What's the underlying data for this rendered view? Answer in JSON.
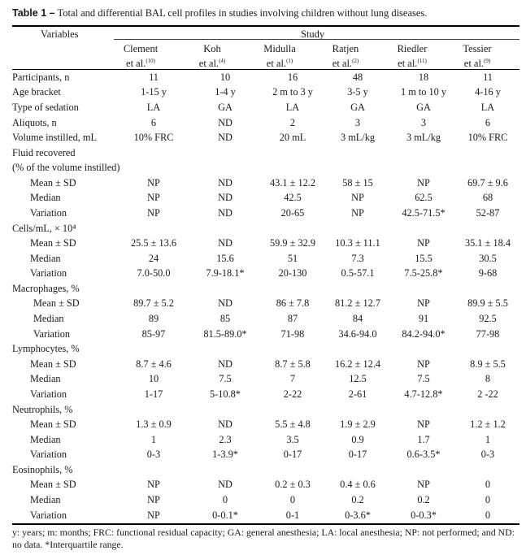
{
  "caption": {
    "label": "Table 1 –",
    "text": "Total and differential BAL cell profiles in studies involving children without lung diseases."
  },
  "header": {
    "variables_label": "Variables",
    "study_label": "Study",
    "columns": [
      {
        "name": "Clement",
        "cite": "et al.",
        "ref": "(10)"
      },
      {
        "name": "Koh",
        "cite": "et al.",
        "ref": "(4)"
      },
      {
        "name": "Midulla",
        "cite": "et al.",
        "ref": "(1)"
      },
      {
        "name": "Ratjen",
        "cite": "et al.",
        "ref": "(2)"
      },
      {
        "name": "Riedler",
        "cite": "et al.",
        "ref": "(11)"
      },
      {
        "name": "Tessier",
        "cite": "et al.",
        "ref": "(9)"
      }
    ]
  },
  "rows": [
    {
      "label": "Participants, n",
      "indent": 0,
      "values": [
        "11",
        "10",
        "16",
        "48",
        "18",
        "11"
      ]
    },
    {
      "label": "Age bracket",
      "indent": 0,
      "values": [
        "1-15 y",
        "1-4 y",
        "2 m to 3 y",
        "3-5 y",
        "1 m to 10 y",
        "4-16 y"
      ]
    },
    {
      "label": "Type of sedation",
      "indent": 0,
      "values": [
        "LA",
        "GA",
        "LA",
        "GA",
        "GA",
        "LA"
      ]
    },
    {
      "label": "Aliquots, n",
      "indent": 0,
      "values": [
        "6",
        "ND",
        "2",
        "3",
        "3",
        "6"
      ]
    },
    {
      "label": "Volume instilled, mL",
      "indent": 0,
      "values": [
        "10% FRC",
        "ND",
        "20 mL",
        "3 mL/kg",
        "3 mL/kg",
        "10% FRC"
      ]
    },
    {
      "label": "Fluid recovered",
      "indent": 0,
      "values": [
        "",
        "",
        "",
        "",
        "",
        ""
      ]
    },
    {
      "label": "(% of the volume instilled)",
      "indent": 0,
      "values": [
        "",
        "",
        "",
        "",
        "",
        ""
      ]
    },
    {
      "label": "Mean ± SD",
      "indent": 1,
      "values": [
        "NP",
        "ND",
        "43.1 ± 12.2",
        "58 ± 15",
        "NP",
        "69.7 ± 9.6"
      ]
    },
    {
      "label": "Median",
      "indent": 1,
      "values": [
        "NP",
        "ND",
        "42.5",
        "NP",
        "62.5",
        "68"
      ]
    },
    {
      "label": "Variation",
      "indent": 1,
      "values": [
        "NP",
        "ND",
        "20-65",
        "NP",
        "42.5-71.5*",
        "52-87"
      ]
    },
    {
      "label": "Cells/mL, × 10⁴",
      "indent": 0,
      "values": [
        "",
        "",
        "",
        "",
        "",
        ""
      ]
    },
    {
      "label": "Mean ± SD",
      "indent": 1,
      "values": [
        "25.5 ± 13.6",
        "ND",
        "59.9 ± 32.9",
        "10.3 ± 11.1",
        "NP",
        "35.1 ± 18.4"
      ]
    },
    {
      "label": "Median",
      "indent": 1,
      "values": [
        "24",
        "15.6",
        "51",
        "7.3",
        "15.5",
        "30.5"
      ]
    },
    {
      "label": "Variation",
      "indent": 1,
      "values": [
        "7.0-50.0",
        "7.9-18.1*",
        "20-130",
        "0.5-57.1",
        "7.5-25.8*",
        "9-68"
      ]
    },
    {
      "label": "Macrophages, %",
      "indent": 0,
      "values": [
        "",
        "",
        "",
        "",
        "",
        ""
      ]
    },
    {
      "label": "Mean ± SD",
      "indent": 2,
      "values": [
        "89.7 ± 5.2",
        "ND",
        "86 ± 7.8",
        "81.2 ± 12.7",
        "NP",
        "89.9 ± 5.5"
      ]
    },
    {
      "label": "Median",
      "indent": 2,
      "values": [
        "89",
        "85",
        "87",
        "84",
        "91",
        "92.5"
      ]
    },
    {
      "label": "Variation",
      "indent": 2,
      "values": [
        "85-97",
        "81.5-89.0*",
        "71-98",
        "34.6-94.0",
        "84.2-94.0*",
        "77-98"
      ]
    },
    {
      "label": "Lymphocytes, %",
      "indent": 0,
      "values": [
        "",
        "",
        "",
        "",
        "",
        ""
      ]
    },
    {
      "label": "Mean ± SD",
      "indent": 1,
      "values": [
        "8.7 ± 4.6",
        "ND",
        "8.7 ± 5.8",
        "16.2 ± 12.4",
        "NP",
        "8.9 ± 5.5"
      ]
    },
    {
      "label": "Median",
      "indent": 1,
      "values": [
        "10",
        "7.5",
        "7",
        "12.5",
        "7.5",
        "8"
      ]
    },
    {
      "label": "Variation",
      "indent": 1,
      "values": [
        "1-17",
        "5-10.8*",
        "2-22",
        "2-61",
        "4.7-12.8*",
        "2 -22"
      ]
    },
    {
      "label": "Neutrophils, %",
      "indent": 0,
      "values": [
        "",
        "",
        "",
        "",
        "",
        ""
      ]
    },
    {
      "label": "Mean ± SD",
      "indent": 1,
      "values": [
        "1.3 ± 0.9",
        "ND",
        "5.5 ± 4.8",
        "1.9 ± 2.9",
        "NP",
        "1.2 ± 1.2"
      ]
    },
    {
      "label": "Median",
      "indent": 1,
      "values": [
        "1",
        "2.3",
        "3.5",
        "0.9",
        "1.7",
        "1"
      ]
    },
    {
      "label": "Variation",
      "indent": 1,
      "values": [
        "0-3",
        "1-3.9*",
        "0-17",
        "0-17",
        "0.6-3.5*",
        "0-3"
      ]
    },
    {
      "label": "Eosinophils, %",
      "indent": 0,
      "values": [
        "",
        "",
        "",
        "",
        "",
        ""
      ]
    },
    {
      "label": "Mean ± SD",
      "indent": 1,
      "values": [
        "NP",
        "ND",
        "0.2 ± 0.3",
        "0.4 ± 0.6",
        "NP",
        "0"
      ]
    },
    {
      "label": "Median",
      "indent": 1,
      "values": [
        "NP",
        "0",
        "0",
        "0.2",
        "0.2",
        "0"
      ]
    },
    {
      "label": "Variation",
      "indent": 1,
      "values": [
        "NP",
        "0-0.1*",
        "0-1",
        "0-3.6*",
        "0-0.3*",
        "0"
      ]
    }
  ],
  "footnote": "y: years; m: months; FRC: functional residual capacity; GA: general anesthesia; LA: local anesthesia; NP: not performed; and ND: no data. *Interquartile range."
}
